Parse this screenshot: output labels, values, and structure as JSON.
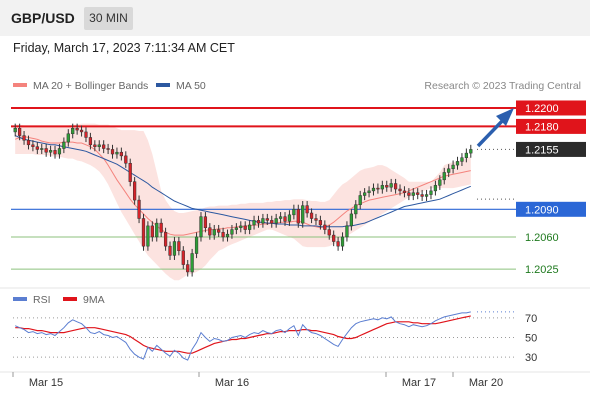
{
  "header": {
    "symbol": "GBP/USD",
    "timeframe": "30 MIN",
    "datetime": "Friday, March 17, 2023 7:11:34 AM CET"
  },
  "legend": {
    "ma20_label": "MA 20 + Bollinger Bands",
    "ma20_color": "#f4837d",
    "ma50_label": "MA 50",
    "ma50_color": "#2c58a0",
    "credit": "Research © 2023 Trading Central"
  },
  "rsi_legend": {
    "rsi_label": "RSI",
    "rsi_color": "#5b7ed1",
    "ma9_label": "9MA",
    "ma9_color": "#e0141b"
  },
  "chart_data": [
    {
      "type": "candlestick",
      "title": "GBP/USD 30 MIN",
      "x_labels": [
        "Mar 15",
        "Mar 16",
        "Mar 17",
        "Mar 20"
      ],
      "ylim": [
        1.201,
        1.2213
      ],
      "levels": [
        {
          "value": 1.22,
          "label": "1.2200",
          "kind": "resistance"
        },
        {
          "value": 1.218,
          "label": "1.2180",
          "kind": "resistance"
        },
        {
          "value": 1.2155,
          "label": "1.2155",
          "kind": "last"
        },
        {
          "value": 1.209,
          "label": "1.2090",
          "kind": "pivot"
        },
        {
          "value": 1.206,
          "label": "1.2060",
          "kind": "support"
        },
        {
          "value": 1.2025,
          "label": "1.2025",
          "kind": "support"
        }
      ],
      "close": [
        1.2178,
        1.217,
        1.2165,
        1.216,
        1.2158,
        1.2155,
        1.2156,
        1.2152,
        1.2154,
        1.215,
        1.2156,
        1.2163,
        1.2172,
        1.2178,
        1.2176,
        1.2174,
        1.2168,
        1.216,
        1.2158,
        1.216,
        1.2156,
        1.2155,
        1.215,
        1.2152,
        1.2148,
        1.214,
        1.212,
        1.21,
        1.208,
        1.205,
        1.2072,
        1.206,
        1.2075,
        1.2065,
        1.205,
        1.204,
        1.2055,
        1.2045,
        1.203,
        1.2022,
        1.2042,
        1.206,
        1.2082,
        1.207,
        1.2062,
        1.2068,
        1.2065,
        1.206,
        1.2063,
        1.2068,
        1.207,
        1.2072,
        1.2068,
        1.2073,
        1.2078,
        1.2075,
        1.208,
        1.2078,
        1.2075,
        1.208,
        1.2082,
        1.2077,
        1.2084,
        1.209,
        1.2075,
        1.2094,
        1.2086,
        1.208,
        1.2078,
        1.2073,
        1.2068,
        1.2062,
        1.2055,
        1.205,
        1.206,
        1.2072,
        1.2085,
        1.2095,
        1.2105,
        1.2108,
        1.211,
        1.2113,
        1.2112,
        1.2116,
        1.2114,
        1.2118,
        1.2112,
        1.211,
        1.2108,
        1.2105,
        1.2108,
        1.2106,
        1.2104,
        1.2106,
        1.211,
        1.2116,
        1.2122,
        1.213,
        1.2134,
        1.2138,
        1.2142,
        1.2146,
        1.2151,
        1.2155
      ],
      "ma20": [
        1.2166,
        1.2168,
        1.2169,
        1.2168,
        1.2167,
        1.2166,
        1.2164,
        1.2163,
        1.2162,
        1.2162,
        1.2162,
        1.2163,
        1.2163,
        1.2163,
        1.2162,
        1.2162,
        1.216,
        1.2158,
        1.2155,
        1.215,
        1.2145,
        1.2138,
        1.213,
        1.2122,
        1.2115,
        1.2108,
        1.2101,
        1.2095,
        1.209,
        1.2085,
        1.208,
        1.2076,
        1.2072,
        1.2068,
        1.2065,
        1.2063,
        1.2062,
        1.2062,
        1.2062,
        1.2063,
        1.2064,
        1.2065,
        1.2066,
        1.2067,
        1.2068,
        1.2068,
        1.2069,
        1.2069,
        1.207,
        1.207,
        1.2071,
        1.2071,
        1.2072,
        1.2072,
        1.2073,
        1.2073,
        1.2074,
        1.2074,
        1.2075,
        1.2075,
        1.2076,
        1.2076,
        1.2076,
        1.2077,
        1.2077,
        1.2076,
        1.2074,
        1.2072,
        1.2071,
        1.207,
        1.2071,
        1.2073,
        1.2076,
        1.208,
        1.2084,
        1.2088,
        1.2091,
        1.2094,
        1.2096,
        1.2098,
        1.21,
        1.2101,
        1.2102,
        1.2103,
        1.2104,
        1.2105,
        1.2106,
        1.2107,
        1.2108,
        1.211,
        1.2112,
        1.2114,
        1.2116,
        1.2118,
        1.212,
        1.2122,
        1.2124,
        1.2126,
        1.2127,
        1.2128,
        1.2129,
        1.213,
        1.2131,
        1.2132
      ],
      "ma50": [
        1.217,
        1.2168,
        1.2166,
        1.2165,
        1.2164,
        1.2163,
        1.2162,
        1.2161,
        1.216,
        1.216,
        1.2159,
        1.2158,
        1.2157,
        1.2156,
        1.2155,
        1.2154,
        1.2153,
        1.2151,
        1.2149,
        1.2147,
        1.2145,
        1.2143,
        1.2141,
        1.2139,
        1.2136,
        1.2133,
        1.213,
        1.2127,
        1.2124,
        1.2121,
        1.2118,
        1.2114,
        1.2111,
        1.2108,
        1.2105,
        1.2102,
        1.2099,
        1.2097,
        1.2095,
        1.2093,
        1.2091,
        1.209,
        1.2089,
        1.2088,
        1.2087,
        1.2086,
        1.2085,
        1.2084,
        1.2083,
        1.2082,
        1.2081,
        1.208,
        1.2079,
        1.2078,
        1.2077,
        1.2076,
        1.2076,
        1.2075,
        1.2075,
        1.2074,
        1.2074,
        1.2074,
        1.2073,
        1.2073,
        1.2073,
        1.2072,
        1.2072,
        1.2072,
        1.2072,
        1.2071,
        1.2071,
        1.2071,
        1.2071,
        1.2071,
        1.2071,
        1.2072,
        1.2072,
        1.2073,
        1.2074,
        1.2075,
        1.2077,
        1.2079,
        1.2081,
        1.2083,
        1.2085,
        1.2087,
        1.2089,
        1.2091,
        1.2093,
        1.2094,
        1.2095,
        1.2096,
        1.2097,
        1.2098,
        1.2099,
        1.21,
        1.2101,
        1.2103,
        1.2105,
        1.2107,
        1.2109,
        1.2111,
        1.2113,
        1.2115
      ],
      "bb_upper": [
        1.2182,
        1.2182,
        1.2181,
        1.2181,
        1.2181,
        1.2181,
        1.2181,
        1.2181,
        1.2181,
        1.2181,
        1.2181,
        1.2181,
        1.2181,
        1.2182,
        1.2182,
        1.2183,
        1.2183,
        1.2183,
        1.2183,
        1.2182,
        1.2182,
        1.2182,
        1.218,
        1.2178,
        1.2176,
        1.2176,
        1.2176,
        1.2176,
        1.2175,
        1.2175,
        1.2165,
        1.215,
        1.213,
        1.211,
        1.21,
        1.2093,
        1.2088,
        1.2086,
        1.2086,
        1.2087,
        1.2088,
        1.2089,
        1.209,
        1.2092,
        1.2093,
        1.2093,
        1.2094,
        1.2094,
        1.2094,
        1.2095,
        1.2095,
        1.2096,
        1.2096,
        1.2097,
        1.2097,
        1.2097,
        1.2097,
        1.2098,
        1.2098,
        1.2099,
        1.2099,
        1.21,
        1.21,
        1.2101,
        1.2101,
        1.2101,
        1.21,
        1.2099,
        1.2099,
        1.2098,
        1.2098,
        1.21,
        1.2106,
        1.2112,
        1.2117,
        1.212,
        1.2124,
        1.2128,
        1.2132,
        1.2134,
        1.2135,
        1.2136,
        1.2138,
        1.2138,
        1.2136,
        1.2133,
        1.213,
        1.2127,
        1.2124,
        1.212,
        1.212,
        1.212,
        1.212,
        1.212,
        1.212,
        1.2125,
        1.213,
        1.2138,
        1.214,
        1.2141,
        1.2142,
        1.2144,
        1.2146,
        1.2147
      ],
      "bb_lower": [
        1.215,
        1.215,
        1.215,
        1.215,
        1.215,
        1.2149,
        1.2149,
        1.2149,
        1.2148,
        1.2147,
        1.2147,
        1.2146,
        1.2145,
        1.2145,
        1.2143,
        1.2142,
        1.214,
        1.2138,
        1.2135,
        1.2131,
        1.2125,
        1.2117,
        1.2107,
        1.2097,
        1.2087,
        1.2079,
        1.2071,
        1.2063,
        1.2055,
        1.2047,
        1.204,
        1.2035,
        1.203,
        1.2025,
        1.202,
        1.2016,
        1.2013,
        1.2013,
        1.2016,
        1.2019,
        1.202,
        1.2022,
        1.2025,
        1.2029,
        1.2035,
        1.204,
        1.2045,
        1.2047,
        1.205,
        1.2052,
        1.2054,
        1.2056,
        1.2058,
        1.206,
        1.2062,
        1.2064,
        1.2066,
        1.2068,
        1.2068,
        1.2066,
        1.2064,
        1.2062,
        1.206,
        1.2058,
        1.2054,
        1.205,
        1.2049,
        1.2049,
        1.2049,
        1.2049,
        1.2049,
        1.205,
        1.2052,
        1.2054,
        1.2058,
        1.2061,
        1.2064,
        1.2067,
        1.207,
        1.2073,
        1.2076,
        1.2079,
        1.2082,
        1.2085,
        1.2088,
        1.2091,
        1.2094,
        1.2097,
        1.21,
        1.2103,
        1.2105,
        1.2107,
        1.2109,
        1.2111,
        1.2113,
        1.2113,
        1.2113,
        1.2113,
        1.2113,
        1.2113,
        1.2114,
        1.2115,
        1.2116,
        1.2117
      ]
    },
    {
      "type": "line",
      "title": "RSI",
      "ylim": [
        20,
        80
      ],
      "y_ticks": [
        70,
        50,
        30
      ],
      "series": [
        {
          "name": "RSI",
          "values": [
            62,
            60,
            58,
            55,
            56,
            54,
            55,
            53,
            54,
            52,
            56,
            60,
            65,
            68,
            66,
            64,
            60,
            55,
            54,
            56,
            53,
            52,
            50,
            51,
            48,
            45,
            38,
            33,
            30,
            28,
            40,
            36,
            42,
            38,
            34,
            31,
            37,
            34,
            29,
            27,
            38,
            45,
            55,
            50,
            46,
            49,
            48,
            46,
            47,
            50,
            51,
            52,
            50,
            53,
            55,
            54,
            57,
            55,
            54,
            57,
            58,
            55,
            59,
            62,
            52,
            63,
            58,
            55,
            54,
            52,
            49,
            46,
            43,
            41,
            48,
            54,
            60,
            64,
            66,
            67,
            68,
            69,
            68,
            70,
            69,
            71,
            66,
            64,
            63,
            61,
            63,
            62,
            61,
            62,
            64,
            67,
            69,
            71,
            72,
            73,
            74,
            75,
            75,
            76
          ]
        },
        {
          "name": "9MA",
          "values": [
            60,
            60,
            59,
            59,
            58,
            57,
            57,
            56,
            55,
            55,
            55,
            55,
            56,
            57,
            58,
            59,
            60,
            60,
            60,
            59,
            58,
            57,
            56,
            55,
            54,
            53,
            51,
            48,
            45,
            42,
            40,
            39,
            38,
            37,
            36,
            36,
            36,
            36,
            35,
            34,
            34,
            36,
            38,
            40,
            42,
            44,
            45,
            46,
            47,
            48,
            48,
            49,
            49,
            50,
            51,
            52,
            53,
            54,
            54,
            55,
            56,
            56,
            57,
            57,
            57,
            58,
            58,
            57,
            57,
            56,
            55,
            54,
            53,
            51,
            50,
            49,
            49,
            50,
            52,
            54,
            56,
            58,
            60,
            62,
            64,
            65,
            66,
            66,
            66,
            66,
            65,
            65,
            64,
            64,
            64,
            64,
            65,
            66,
            67,
            68,
            69,
            70,
            71,
            72
          ]
        }
      ]
    }
  ]
}
